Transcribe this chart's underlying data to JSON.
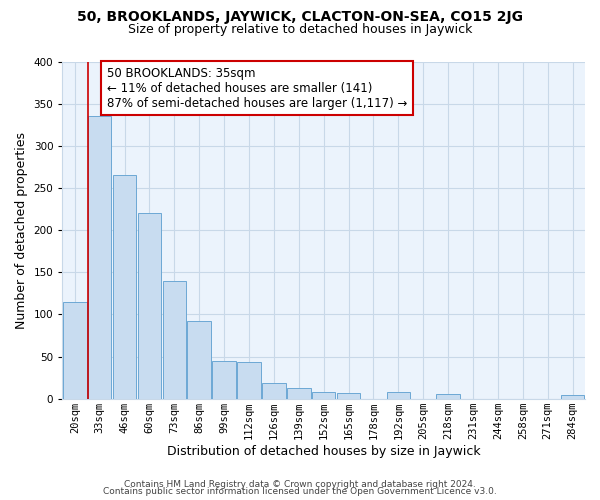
{
  "title": "50, BROOKLANDS, JAYWICK, CLACTON-ON-SEA, CO15 2JG",
  "subtitle": "Size of property relative to detached houses in Jaywick",
  "xlabel": "Distribution of detached houses by size in Jaywick",
  "ylabel": "Number of detached properties",
  "bar_labels": [
    "20sqm",
    "33sqm",
    "46sqm",
    "60sqm",
    "73sqm",
    "86sqm",
    "99sqm",
    "112sqm",
    "126sqm",
    "139sqm",
    "152sqm",
    "165sqm",
    "178sqm",
    "192sqm",
    "205sqm",
    "218sqm",
    "231sqm",
    "244sqm",
    "258sqm",
    "271sqm",
    "284sqm"
  ],
  "bar_values": [
    115,
    335,
    265,
    220,
    140,
    92,
    45,
    43,
    19,
    13,
    8,
    7,
    0,
    8,
    0,
    5,
    0,
    0,
    0,
    0,
    4
  ],
  "bar_color": "#C8DCF0",
  "bar_edge_color": "#6CA8D4",
  "vline_x_index": 1,
  "vline_color": "#CC0000",
  "annotation_text_line1": "50 BROOKLANDS: 35sqm",
  "annotation_text_line2": "← 11% of detached houses are smaller (141)",
  "annotation_text_line3": "87% of semi-detached houses are larger (1,117) →",
  "annotation_box_color": "#ffffff",
  "annotation_box_edge": "#CC0000",
  "ylim": [
    0,
    400
  ],
  "yticks": [
    0,
    50,
    100,
    150,
    200,
    250,
    300,
    350,
    400
  ],
  "footer_line1": "Contains HM Land Registry data © Crown copyright and database right 2024.",
  "footer_line2": "Contains public sector information licensed under the Open Government Licence v3.0.",
  "bg_color": "#ffffff",
  "plot_bg_color": "#EBF3FC",
  "grid_color": "#c8d8e8",
  "title_fontsize": 10,
  "subtitle_fontsize": 9,
  "axis_label_fontsize": 9,
  "tick_fontsize": 7.5,
  "annotation_fontsize": 8.5,
  "footer_fontsize": 6.5
}
